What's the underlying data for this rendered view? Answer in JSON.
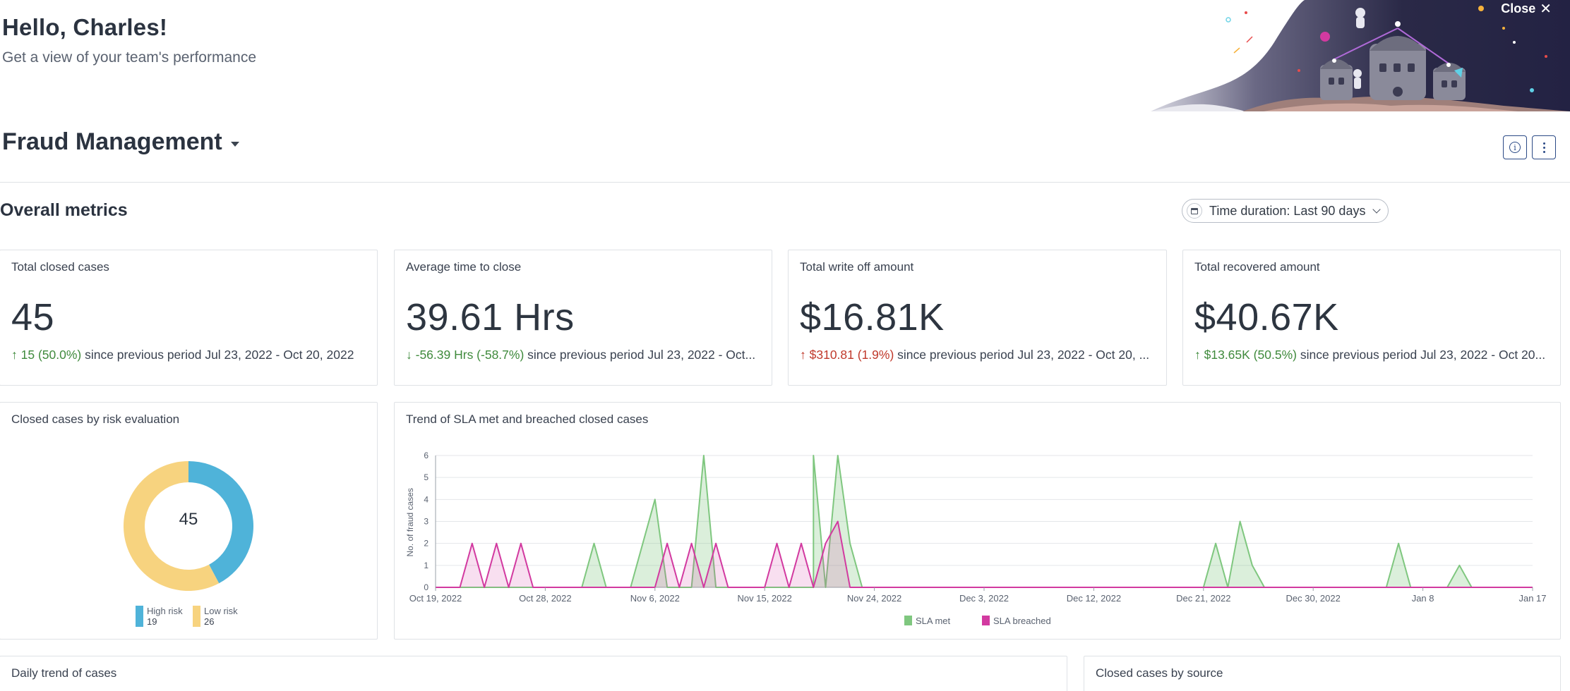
{
  "greeting": {
    "title": "Hello, Charles!",
    "subtitle": "Get a view of your team's performance"
  },
  "banner": {
    "close_label": "Close",
    "close_icon": "close-icon"
  },
  "dashboard": {
    "title": "Fraud Management",
    "info_icon": "info-icon",
    "more_icon": "more-vertical-icon"
  },
  "overall": {
    "title": "Overall metrics",
    "duration_label": "Time duration: Last 90 days",
    "calendar_icon": "calendar-icon"
  },
  "metrics": [
    {
      "title": "Total closed cases",
      "value": "45",
      "arrow": "↑",
      "delta": "15 (50.0%)",
      "tail": " since previous period Jul 23, 2022 - Oct 20, 2022",
      "tone": "up-green"
    },
    {
      "title": "Average time to close",
      "value": "39.61 Hrs",
      "arrow": "↓",
      "delta": "-56.39 Hrs (-58.7%)",
      "tail": " since previous period Jul 23, 2022 - Oct...",
      "tone": "down-green"
    },
    {
      "title": "Total write off amount",
      "value": "$16.81K",
      "arrow": "↑",
      "delta": "$310.81 (1.9%)",
      "tail": " since previous period Jul 23, 2022 - Oct 20, ...",
      "tone": "up-red"
    },
    {
      "title": "Total recovered amount",
      "value": "$40.67K",
      "arrow": "↑",
      "delta": "$13.65K (50.5%)",
      "tail": " since previous period Jul 23, 2022 - Oct 20...",
      "tone": "up-green"
    }
  ],
  "risk_card": {
    "title": "Closed cases by risk evaluation",
    "center_value": "45"
  },
  "trend_card": {
    "title": "Trend of SLA met and breached closed cases"
  },
  "daily_card": {
    "title": "Daily trend of cases"
  },
  "source_card": {
    "title": "Closed cases by source"
  },
  "colors": {
    "sla_met": "#7fc77f",
    "sla_breached": "#d23aa0",
    "high_risk": "#4fb3d9",
    "low_risk": "#f7d37f"
  },
  "chart_data": [
    {
      "type": "pie",
      "labels": [
        "High risk",
        "Low risk"
      ],
      "values": [
        19,
        26
      ],
      "colors": [
        "#4fb3d9",
        "#f7d37f"
      ],
      "center_label": "45",
      "legend_placement": "bottom"
    },
    {
      "type": "area",
      "ylabel": "No. of fraud cases",
      "ylim": [
        0,
        6
      ],
      "yticks": [
        "0",
        "1",
        "2",
        "3",
        "4",
        "5",
        "6"
      ],
      "x_start": "Oct 19, 2022",
      "x_end": "Jan 17",
      "x_tick_labels": [
        "Oct 19, 2022",
        "Oct 28, 2022",
        "Nov 6, 2022",
        "Nov 15, 2022",
        "Nov 24, 2022",
        "Dec 3, 2022",
        "Dec 12, 2022",
        "Dec 21, 2022",
        "Dec 30, 2022",
        "Jan 8",
        "Jan 17"
      ],
      "grid": true,
      "legend_placement": "bottom",
      "series": [
        {
          "name": "SLA met",
          "points": [
            [
              "Nov 4",
              0
            ],
            [
              "Nov 6",
              4
            ],
            [
              "Nov 7",
              0
            ],
            [
              "Nov 9",
              0
            ],
            [
              "Nov 10",
              6
            ],
            [
              "Nov 11",
              0
            ],
            [
              "Nov 19",
              0
            ],
            [
              "Nov 19",
              6
            ],
            [
              "Nov 20",
              0
            ],
            [
              "Nov 21",
              6
            ],
            [
              "Nov 22",
              2
            ],
            [
              "Nov 23",
              0
            ],
            [
              "Dec 21",
              0
            ],
            [
              "Dec 22",
              2
            ],
            [
              "Dec 23",
              0
            ],
            [
              "Dec 24",
              3
            ],
            [
              "Dec 25",
              1
            ],
            [
              "Dec 26",
              0
            ],
            [
              "Jan 5",
              0
            ],
            [
              "Jan 6",
              2
            ],
            [
              "Jan 7",
              0
            ],
            [
              "Jan 10",
              0
            ],
            [
              "Jan 11",
              1
            ],
            [
              "Jan 12",
              0
            ]
          ],
          "extra_points": [
            [
              "Oct 31",
              0
            ],
            [
              "Nov 1",
              2
            ],
            [
              "Nov 2",
              0
            ]
          ]
        },
        {
          "name": "SLA breached",
          "points": [
            [
              "Oct 21",
              0
            ],
            [
              "Oct 22",
              2
            ],
            [
              "Oct 23",
              0
            ],
            [
              "Oct 24",
              2
            ],
            [
              "Oct 25",
              0
            ],
            [
              "Oct 26",
              2
            ],
            [
              "Oct 27",
              0
            ],
            [
              "Nov 6",
              0
            ],
            [
              "Nov 7",
              2
            ],
            [
              "Nov 8",
              0
            ],
            [
              "Nov 9",
              2
            ],
            [
              "Nov 10",
              0
            ],
            [
              "Nov 11",
              2
            ],
            [
              "Nov 12",
              0
            ],
            [
              "Nov 15",
              0
            ],
            [
              "Nov 16",
              2
            ],
            [
              "Nov 17",
              0
            ],
            [
              "Nov 18",
              2
            ],
            [
              "Nov 19",
              0
            ],
            [
              "Nov 20",
              2
            ],
            [
              "Nov 21",
              3
            ],
            [
              "Nov 22",
              0
            ]
          ]
        }
      ]
    }
  ]
}
